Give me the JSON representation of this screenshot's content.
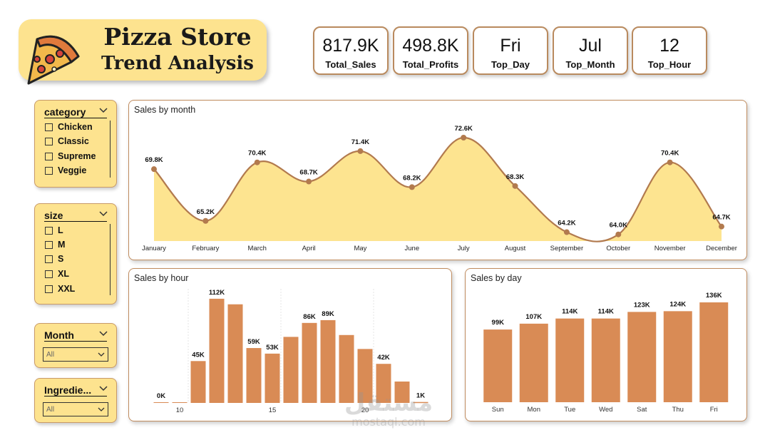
{
  "header": {
    "title_line1": "Pizza Store",
    "title_line2": "Trend Analysis",
    "logo_icon": "pizza-slice-icon"
  },
  "kpis": [
    {
      "value": "817.9K",
      "label": "Total_Sales"
    },
    {
      "value": "498.8K",
      "label": "Total_Profits"
    },
    {
      "value": "Fri",
      "label": "Top_Day"
    },
    {
      "value": "Jul",
      "label": "Top_Month"
    },
    {
      "value": "12",
      "label": "Top_Hour"
    }
  ],
  "slicers": {
    "category": {
      "title": "category",
      "options": [
        "Chicken",
        "Classic",
        "Supreme",
        "Veggie"
      ]
    },
    "size": {
      "title": "size",
      "options": [
        "L",
        "M",
        "S",
        "XL",
        "XXL"
      ]
    },
    "month": {
      "title": "Month",
      "selected": "All"
    },
    "ingredients": {
      "title": "Ingredie...",
      "selected": "All"
    }
  },
  "colors": {
    "accent": "#d98b55",
    "area_fill": "#fde490",
    "line": "#b27a4e",
    "panel_border": "#c08c5f",
    "slicer_bg": "#fde38f"
  },
  "watermark": {
    "arabic": "مستقل",
    "latin": "mostaql.com"
  },
  "chart_data": [
    {
      "type": "area",
      "title": "Sales by month",
      "categories": [
        "January",
        "February",
        "March",
        "April",
        "May",
        "June",
        "July",
        "August",
        "September",
        "October",
        "November",
        "December"
      ],
      "values": [
        69.8,
        65.2,
        70.4,
        68.7,
        71.4,
        68.2,
        72.6,
        68.3,
        64.2,
        64.0,
        70.4,
        64.7
      ],
      "data_labels": [
        "69.8K",
        "65.2K",
        "70.4K",
        "68.7K",
        "71.4K",
        "68.2K",
        "72.6K",
        "68.3K",
        "64.2K",
        "64.0K",
        "70.4K",
        "64.7K"
      ],
      "unit": "K",
      "grid": false
    },
    {
      "type": "bar",
      "title": "Sales by hour",
      "x": [
        9,
        10,
        11,
        12,
        13,
        14,
        15,
        16,
        17,
        18,
        19,
        20,
        21,
        22,
        23
      ],
      "values": [
        0,
        0,
        45,
        112,
        106,
        59,
        53,
        71,
        86,
        89,
        73,
        58,
        42,
        23,
        1
      ],
      "data_labels": [
        "0K",
        "",
        "45K",
        "112K",
        "",
        "59K",
        "53K",
        "",
        "86K",
        "89K",
        "",
        "",
        "42K",
        "",
        "1K"
      ],
      "tick_labels": [
        {
          "x": 10,
          "label": "10"
        },
        {
          "x": 15,
          "label": "15"
        },
        {
          "x": 20,
          "label": "20"
        }
      ],
      "unit": "K"
    },
    {
      "type": "bar",
      "title": "Sales by day",
      "categories": [
        "Sun",
        "Mon",
        "Tue",
        "Wed",
        "Sat",
        "Thu",
        "Fri"
      ],
      "values": [
        99,
        107,
        114,
        114,
        123,
        124,
        136
      ],
      "data_labels": [
        "99K",
        "107K",
        "114K",
        "114K",
        "123K",
        "124K",
        "136K"
      ],
      "unit": "K"
    }
  ]
}
